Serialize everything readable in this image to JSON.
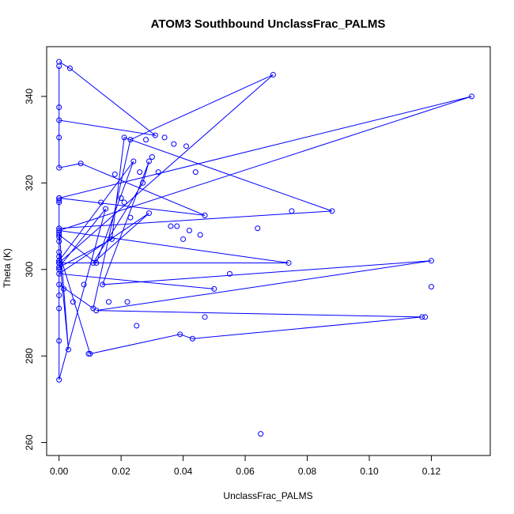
{
  "chart_data": {
    "type": "line",
    "title": "ATOM3 Southbound UnclassFrac_PALMS",
    "xlabel": "UnclassFrac_PALMS",
    "ylabel": "Theta (K)",
    "xlim": [
      -0.004,
      0.139
    ],
    "ylim": [
      257,
      351.5
    ],
    "xticks": [
      0.0,
      0.02,
      0.04,
      0.06,
      0.08,
      0.1,
      0.12
    ],
    "xtick_labels": [
      "0.00",
      "0.02",
      "0.04",
      "0.06",
      "0.08",
      "0.10",
      "0.12"
    ],
    "yticks": [
      260,
      280,
      300,
      320,
      340
    ],
    "ytick_labels": [
      "260",
      "280",
      "300",
      "320",
      "340"
    ],
    "grid": false,
    "legend": "none",
    "series_color": "#0000ff",
    "series": [
      {
        "x": [
          0.0,
          0.0035,
          0.031,
          0.0,
          0.0,
          0.0,
          0.0,
          0.007,
          0.047,
          0.0,
          0.0,
          0.0,
          0.0,
          0.0,
          0.0,
          0.0,
          0.0,
          0.0,
          0.0,
          0.0,
          0.0,
          0.011,
          0.023,
          0.069,
          0.0,
          0.074,
          0.0,
          0.133,
          0.0,
          0.0,
          0.0,
          0.015,
          0.0,
          0.0,
          0.012,
          0.024,
          0.0,
          0.0,
          0.0,
          0.0,
          0.017,
          0.021,
          0.088,
          0.0,
          0.003,
          0.0,
          0.01,
          0.039,
          0.043,
          0.117,
          0.012,
          0.12,
          0.014,
          0.029,
          0.027,
          0.011,
          0.029,
          0.0,
          0.05
        ],
        "y": [
          348.0,
          346.5,
          331.0,
          334.5,
          347.0,
          337.5,
          323.5,
          324.5,
          312.5,
          316.5,
          291.0,
          308.5,
          301.5,
          315.5,
          300.0,
          307.5,
          283.5,
          316.0,
          302.0,
          294.0,
          296.5,
          291.0,
          330.0,
          345.0,
          301.5,
          301.5,
          309.0,
          340.0,
          316.5,
          301.5,
          274.5,
          314.0,
          300.5,
          308.0,
          301.5,
          325.0,
          302.0,
          303.0,
          306.5,
          300.5,
          307.0,
          330.5,
          313.5,
          309.5,
          281.5,
          304.0,
          280.5,
          285.0,
          284.0,
          289.0,
          290.5,
          302.0,
          296.5,
          325.0,
          320.0,
          301.5,
          313.0,
          299.0,
          295.5
        ]
      }
    ],
    "extra_points": [
      {
        "x": 0.0015,
        "y": 295.5
      },
      {
        "x": 0.0045,
        "y": 292.5
      },
      {
        "x": 0.008,
        "y": 296.5
      },
      {
        "x": 0.0095,
        "y": 280.5
      },
      {
        "x": 0.0135,
        "y": 315.5
      },
      {
        "x": 0.016,
        "y": 292.5
      },
      {
        "x": 0.018,
        "y": 322.0
      },
      {
        "x": 0.02,
        "y": 316.5
      },
      {
        "x": 0.021,
        "y": 315.5
      },
      {
        "x": 0.023,
        "y": 312.0
      },
      {
        "x": 0.022,
        "y": 292.5
      },
      {
        "x": 0.025,
        "y": 287.0
      },
      {
        "x": 0.026,
        "y": 322.5
      },
      {
        "x": 0.028,
        "y": 330.0
      },
      {
        "x": 0.03,
        "y": 326.0
      },
      {
        "x": 0.032,
        "y": 322.5
      },
      {
        "x": 0.034,
        "y": 330.5
      },
      {
        "x": 0.036,
        "y": 310.0
      },
      {
        "x": 0.037,
        "y": 329.0
      },
      {
        "x": 0.038,
        "y": 310.0
      },
      {
        "x": 0.04,
        "y": 307.0
      },
      {
        "x": 0.041,
        "y": 328.5
      },
      {
        "x": 0.042,
        "y": 309.0
      },
      {
        "x": 0.044,
        "y": 322.5
      },
      {
        "x": 0.0455,
        "y": 308.0
      },
      {
        "x": 0.047,
        "y": 289.0
      },
      {
        "x": 0.055,
        "y": 299.0
      },
      {
        "x": 0.064,
        "y": 309.5
      },
      {
        "x": 0.065,
        "y": 262.0
      },
      {
        "x": 0.075,
        "y": 313.5
      },
      {
        "x": 0.118,
        "y": 289.0
      },
      {
        "x": 0.12,
        "y": 296.0
      },
      {
        "x": 0.0,
        "y": 330.5
      }
    ]
  }
}
